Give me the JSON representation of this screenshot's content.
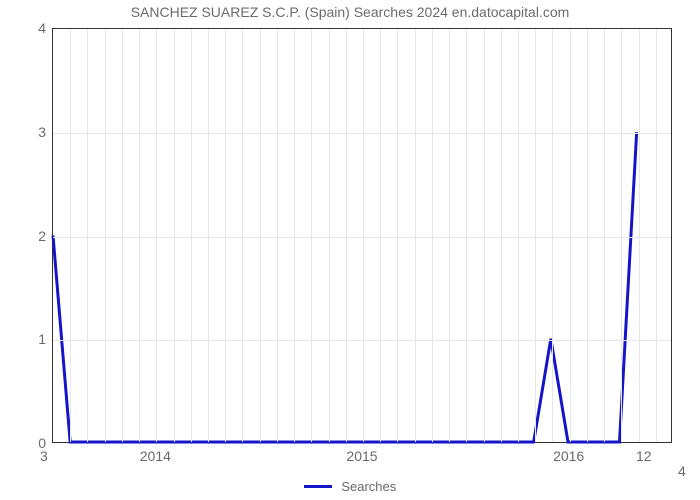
{
  "chart": {
    "type": "line",
    "title": "SANCHEZ SUAREZ S.C.P. (Spain) Searches 2024 en.datocapital.com",
    "title_color": "#6a6a6a",
    "title_fontsize": 14,
    "background_color": "#ffffff",
    "plot_border_color": "#333333",
    "grid_color": "#e6e6e6",
    "grid_on": true,
    "axis_label_color": "#6a6a6a",
    "axis_label_fontsize": 14,
    "x": {
      "domain": [
        0,
        36
      ],
      "major_ticks": [
        {
          "pos": 6,
          "label": "2014"
        },
        {
          "pos": 18,
          "label": "2015"
        },
        {
          "pos": 30,
          "label": "2016"
        }
      ],
      "minor_tick_step": 1
    },
    "y": {
      "lim": [
        0,
        4
      ],
      "tick_step": 1,
      "ticks": [
        "0",
        "1",
        "2",
        "3",
        "4"
      ]
    },
    "corner_labels": {
      "bottom_left": "3",
      "right_upper": "12",
      "right_lower": "4"
    },
    "series": {
      "name": "Searches",
      "color": "#1414c8",
      "line_width": 3,
      "points": [
        [
          0,
          2.0
        ],
        [
          1,
          0.0
        ],
        [
          28,
          0.0
        ],
        [
          29,
          1.0
        ],
        [
          30,
          0.0
        ],
        [
          33,
          0.0
        ],
        [
          34,
          3.0
        ]
      ]
    },
    "legend": {
      "label": "Searches",
      "swatch_color": "#1414c8",
      "text_color": "#6a6a6a",
      "fontsize": 13
    }
  }
}
